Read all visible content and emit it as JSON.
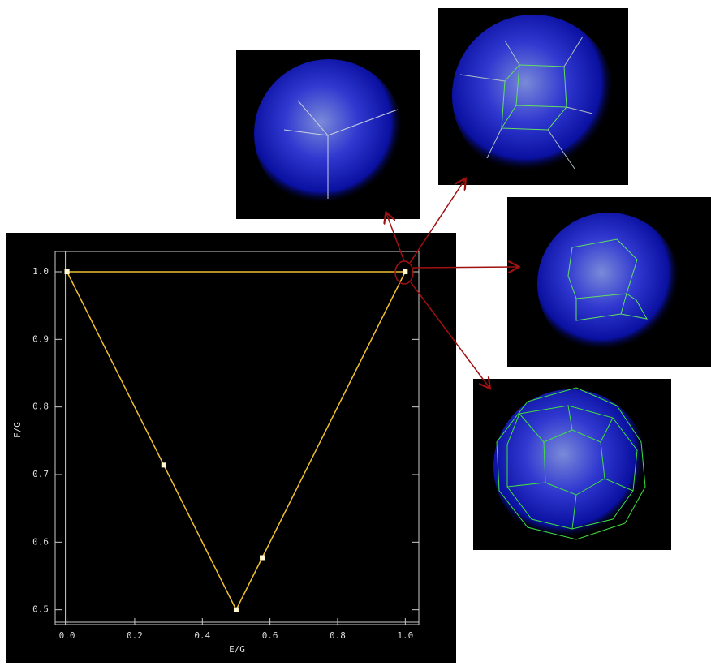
{
  "chart_data": {
    "type": "line",
    "x_label": "E/G",
    "y_label": "F/G",
    "xlim": [
      -0.035,
      1.04
    ],
    "ylim": [
      0.478,
      1.03
    ],
    "xticks": [
      {
        "value": 0,
        "label": "0.0"
      },
      0.2,
      0.4,
      0.6,
      0.8,
      {
        "value": 1,
        "label": "1.0"
      }
    ],
    "yticks": [
      0.5,
      0.6,
      0.7,
      0.8,
      0.9,
      {
        "value": 1,
        "label": "1.0"
      }
    ],
    "series": [
      {
        "color": "#f0c030",
        "x": [
          0,
          0.286,
          0.5,
          0.577,
          1,
          0
        ],
        "y": [
          1,
          0.714,
          0.5,
          0.577,
          1,
          1
        ]
      }
    ]
  }
}
